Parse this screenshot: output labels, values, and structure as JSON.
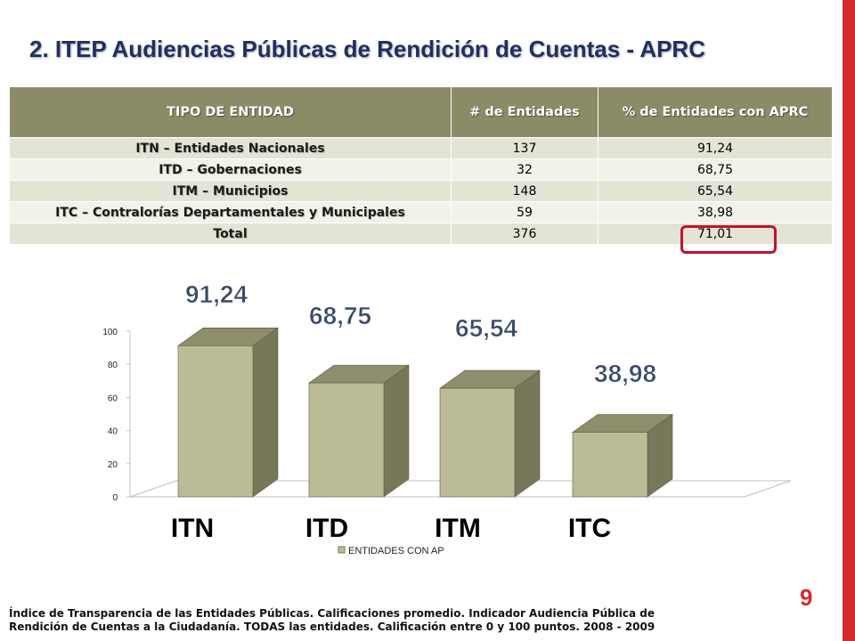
{
  "slide": {
    "title": "2. ITEP Audiencias Públicas de Rendición de Cuentas - APRC",
    "page_number": "9",
    "footnote_line1": "Índice de Transparencia de las Entidades Públicas. Calificaciones promedio. Indicador Audiencia Pública de",
    "footnote_line2": "Rendición de Cuentas a la Ciudadanía. TODAS las entidades. Calificación entre 0 y 100 puntos. 2008 - 2009"
  },
  "table": {
    "headers": [
      "TIPO DE ENTIDAD",
      "# de Entidades",
      "% de Entidades con APRC"
    ],
    "rows": [
      {
        "tipo": "ITN – Entidades Nacionales",
        "n": "137",
        "pct": "91,24"
      },
      {
        "tipo": "ITD – Gobernaciones",
        "n": "32",
        "pct": "68,75"
      },
      {
        "tipo": "ITM – Municipios",
        "n": "148",
        "pct": "65,54"
      },
      {
        "tipo": "ITC – Contralorías Departamentales y Municipales",
        "n": "59",
        "pct": "38,98"
      },
      {
        "tipo": "Total",
        "n": "376",
        "pct": "71,01"
      }
    ]
  },
  "colors": {
    "header_bg": "#8b8b68",
    "row_odd": "#e4e4d6",
    "row_even": "#f2f2ea",
    "accent": "#d62a2a",
    "highlight": "#c2132b",
    "bar_front": "#bcbb97",
    "bar_side": "#77775a",
    "bar_top": "#8e8d6c"
  },
  "chart_data": {
    "type": "bar",
    "categories": [
      "ITN",
      "ITD",
      "ITM",
      "ITC"
    ],
    "series": [
      {
        "name": "ENTIDADES CON AP",
        "values": [
          91.24,
          68.75,
          65.54,
          38.98
        ]
      }
    ],
    "data_labels": [
      "91,24",
      "68,75",
      "65,54",
      "38,98"
    ],
    "yticks": [
      "0",
      "20",
      "40",
      "60",
      "80",
      "100"
    ],
    "ylim": [
      0,
      100
    ],
    "legend": "bottom",
    "style": "3d"
  }
}
